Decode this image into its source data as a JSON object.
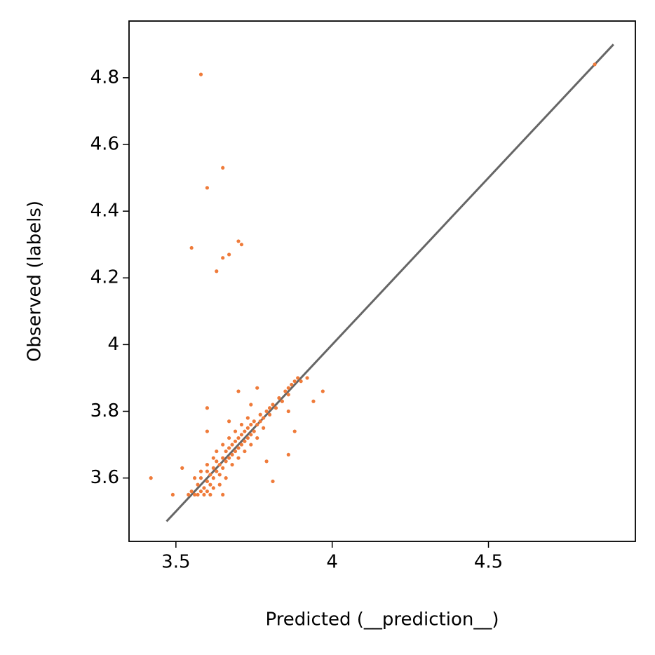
{
  "chart_data": {
    "type": "scatter",
    "x_label": "Predicted (__prediction__)",
    "y_label": "Observed (labels)",
    "xlim": [
      3.35,
      4.97
    ],
    "ylim": [
      3.41,
      4.97
    ],
    "xticks": [
      3.5,
      4.0,
      4.5
    ],
    "yticks": [
      3.6,
      3.8,
      4.0,
      4.2,
      4.4,
      4.6,
      4.8
    ],
    "reference_line": {
      "x": [
        3.47,
        4.9
      ],
      "y": [
        3.47,
        4.9
      ],
      "color": "#666666"
    },
    "series": [
      {
        "color": "#ef7b3a",
        "x": [
          3.58,
          4.84,
          3.65,
          3.6,
          3.55,
          3.7,
          3.71,
          3.67,
          3.65,
          3.63,
          3.42,
          3.6,
          3.97,
          3.94,
          3.92,
          3.86,
          3.88,
          3.86,
          3.81,
          3.79,
          3.7,
          3.76,
          3.67,
          3.6,
          3.52,
          3.49,
          3.65,
          3.74,
          3.55,
          3.56,
          3.57,
          3.58,
          3.58,
          3.59,
          3.6,
          3.6,
          3.61,
          3.61,
          3.62,
          3.62,
          3.63,
          3.63,
          3.64,
          3.64,
          3.65,
          3.65,
          3.66,
          3.66,
          3.67,
          3.67,
          3.68,
          3.68,
          3.69,
          3.69,
          3.7,
          3.7,
          3.71,
          3.71,
          3.72,
          3.72,
          3.73,
          3.73,
          3.74,
          3.74,
          3.75,
          3.75,
          3.76,
          3.77,
          3.77,
          3.78,
          3.79,
          3.8,
          3.8,
          3.81,
          3.82,
          3.83,
          3.84,
          3.85,
          3.86,
          3.86,
          3.87,
          3.88,
          3.89,
          3.9,
          3.57,
          3.59,
          3.6,
          3.62,
          3.58,
          3.6,
          3.62,
          3.64,
          3.66,
          3.68,
          3.7,
          3.72,
          3.63,
          3.65,
          3.67,
          3.69,
          3.74,
          3.76,
          3.78,
          3.71,
          3.73,
          3.54,
          3.56,
          3.61
        ],
        "values": [
          4.81,
          4.84,
          4.53,
          4.47,
          4.29,
          4.31,
          4.3,
          4.27,
          4.26,
          4.22,
          3.6,
          3.81,
          3.86,
          3.83,
          3.9,
          3.8,
          3.74,
          3.67,
          3.59,
          3.65,
          3.86,
          3.87,
          3.77,
          3.74,
          3.63,
          3.55,
          3.55,
          3.82,
          3.56,
          3.55,
          3.58,
          3.56,
          3.6,
          3.57,
          3.59,
          3.62,
          3.58,
          3.61,
          3.6,
          3.63,
          3.62,
          3.65,
          3.61,
          3.64,
          3.63,
          3.66,
          3.65,
          3.68,
          3.66,
          3.69,
          3.67,
          3.7,
          3.68,
          3.71,
          3.69,
          3.72,
          3.7,
          3.73,
          3.71,
          3.74,
          3.72,
          3.75,
          3.73,
          3.76,
          3.74,
          3.77,
          3.76,
          3.77,
          3.79,
          3.78,
          3.8,
          3.79,
          3.81,
          3.82,
          3.81,
          3.84,
          3.83,
          3.86,
          3.85,
          3.87,
          3.88,
          3.89,
          3.9,
          3.89,
          3.55,
          3.55,
          3.56,
          3.57,
          3.62,
          3.64,
          3.66,
          3.58,
          3.6,
          3.64,
          3.66,
          3.68,
          3.68,
          3.7,
          3.72,
          3.74,
          3.7,
          3.72,
          3.75,
          3.76,
          3.78,
          3.55,
          3.6,
          3.55
        ]
      }
    ]
  }
}
